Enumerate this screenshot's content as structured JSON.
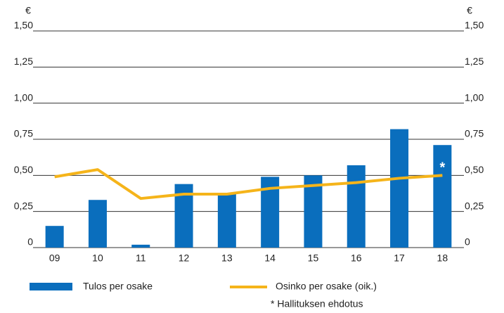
{
  "chart_data": {
    "type": "bar_line",
    "unit_left": "€",
    "unit_right": "€",
    "categories": [
      "09",
      "10",
      "11",
      "12",
      "13",
      "14",
      "15",
      "16",
      "17",
      "18"
    ],
    "series": [
      {
        "name": "Tulos per osake",
        "type": "bar",
        "color": "#0a6ebd",
        "values": [
          0.15,
          0.33,
          0.02,
          0.44,
          0.37,
          0.49,
          0.5,
          0.57,
          0.82,
          0.71
        ]
      },
      {
        "name": "Osinko per osake (oik.)",
        "type": "line",
        "axis": "y2",
        "color": "#f5b41a",
        "values": [
          0.49,
          0.54,
          0.34,
          0.37,
          0.37,
          0.41,
          0.43,
          0.45,
          0.48,
          0.5
        ]
      }
    ],
    "ylim": [
      0,
      1.5
    ],
    "yticks": [
      0,
      {
        "value": 0.25,
        "label": "0,25"
      },
      {
        "value": 0.5,
        "label": "0,50"
      },
      {
        "value": 0.75,
        "label": "0,75"
      },
      {
        "value": 1.0,
        "label": "1,00"
      },
      {
        "value": 1.25,
        "label": "1,25"
      },
      {
        "value": 1.5,
        "label": "1,50"
      }
    ],
    "y2lim": [
      0,
      1.5
    ],
    "y2ticks": [
      0,
      {
        "value": 0.25,
        "label": "0,25"
      },
      {
        "value": 0.5,
        "label": "0,50"
      },
      {
        "value": 0.75,
        "label": "0,75"
      },
      {
        "value": 1.0,
        "label": "1,00"
      },
      {
        "value": 1.25,
        "label": "1,25"
      },
      {
        "value": 1.5,
        "label": "1,50"
      }
    ],
    "grid": true,
    "annotation": "*",
    "footnote": "* Hallituksen ehdotus"
  }
}
